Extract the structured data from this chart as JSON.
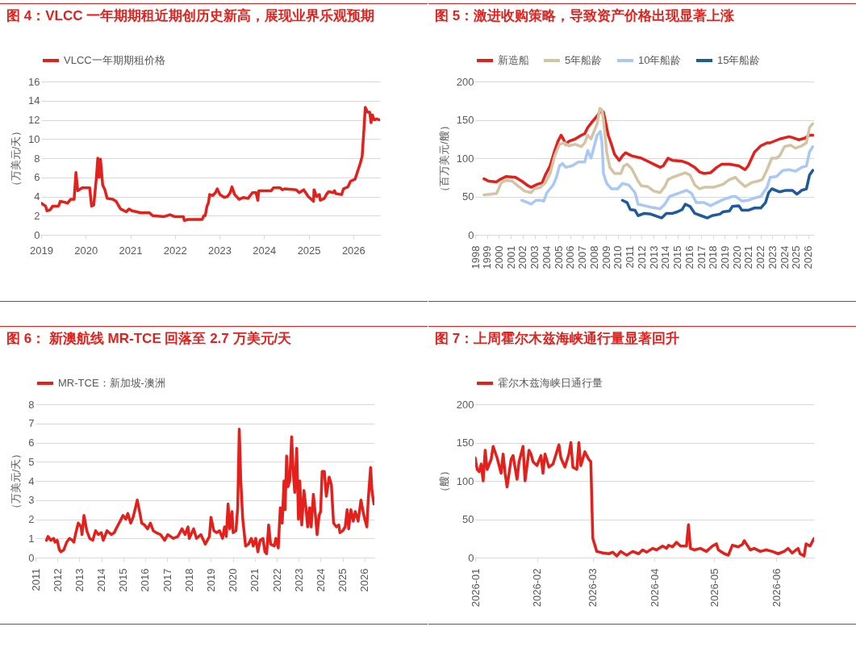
{
  "chart_data": [
    {
      "type": "line",
      "title": "图 4：VLCC 一年期期租近期创历史新高，展现业界乐观预期",
      "ylabel": "（万美元/天）",
      "legend": "top",
      "grid": "y",
      "marker": "none",
      "line_style": "solid",
      "xlim": [
        2019,
        2026.6
      ],
      "xticks": [
        2019,
        2020,
        2021,
        2022,
        2023,
        2024,
        2025,
        2026
      ],
      "ylim": [
        0,
        16
      ],
      "yticks": [
        0,
        2,
        4,
        6,
        8,
        10,
        12,
        14,
        16
      ],
      "x": [
        2019.0,
        2019.1,
        2019.13,
        2019.2,
        2019.26,
        2019.39,
        2019.43,
        2019.53,
        2019.59,
        2019.66,
        2019.74,
        2019.78,
        2019.82,
        2019.92,
        2020.09,
        2020.13,
        2020.18,
        2020.24,
        2020.27,
        2020.3,
        2020.33,
        2020.38,
        2020.43,
        2020.48,
        2020.61,
        2020.68,
        2020.78,
        2020.91,
        2020.97,
        2021.04,
        2021.24,
        2021.43,
        2021.5,
        2021.76,
        2021.89,
        2021.99,
        2022.19,
        2022.21,
        2022.29,
        2022.61,
        2022.65,
        2022.68,
        2022.72,
        2022.75,
        2022.78,
        2022.85,
        2022.91,
        2022.95,
        2023.01,
        2023.11,
        2023.18,
        2023.24,
        2023.28,
        2023.34,
        2023.44,
        2023.54,
        2023.64,
        2023.74,
        2023.82,
        2023.86,
        2023.88,
        2024.16,
        2024.21,
        2024.36,
        2024.41,
        2024.46,
        2024.72,
        2024.79,
        2024.89,
        2024.99,
        2025.11,
        2025.12,
        2025.18,
        2025.24,
        2025.26,
        2025.35,
        2025.41,
        2025.45,
        2025.55,
        2025.58,
        2025.61,
        2025.74,
        2025.78,
        2025.88,
        2025.94,
        2026.04,
        2026.09,
        2026.16,
        2026.2,
        2026.24,
        2026.27,
        2026.32,
        2026.37,
        2026.4,
        2026.43,
        2026.47,
        2026.53,
        2026.58
      ],
      "series": [
        {
          "name": "VLCC一年期期租价格",
          "color": "#e3201b",
          "values": [
            3.3,
            3.0,
            2.5,
            2.6,
            3.0,
            3.0,
            3.5,
            3.4,
            3.3,
            3.7,
            3.7,
            6.5,
            4.6,
            4.9,
            4.9,
            3.0,
            3.1,
            6.0,
            8.0,
            6.0,
            7.9,
            5.2,
            4.7,
            3.8,
            3.7,
            3.5,
            2.7,
            2.4,
            2.7,
            2.5,
            2.3,
            2.3,
            2.0,
            1.9,
            2.1,
            1.9,
            1.9,
            1.5,
            1.6,
            1.6,
            2.0,
            2.0,
            3.0,
            3.3,
            4.2,
            4.1,
            4.4,
            4.8,
            4.2,
            3.9,
            4.0,
            4.4,
            5.0,
            4.2,
            3.7,
            3.9,
            3.8,
            4.4,
            4.4,
            3.6,
            4.6,
            4.6,
            4.9,
            4.9,
            4.7,
            4.8,
            4.7,
            4.4,
            4.7,
            4.0,
            3.5,
            4.7,
            4.0,
            4.2,
            3.6,
            3.8,
            4.3,
            4.5,
            4.4,
            4.6,
            4.3,
            4.2,
            4.8,
            5.0,
            5.6,
            5.8,
            6.5,
            7.5,
            8.2,
            11.0,
            13.3,
            12.8,
            12.8,
            11.7,
            12.5,
            12.0,
            12.1,
            12.0
          ]
        }
      ]
    },
    {
      "type": "line",
      "title": "图 5：激进收购策略，导致资产价格出现显著上涨",
      "ylabel": "（百万美元/艘）",
      "legend": "top",
      "grid": "y",
      "marker": "none",
      "line_style": "solid",
      "xlim": [
        1998,
        2026.5
      ],
      "xticks": [
        1998,
        1999,
        2000,
        2001,
        2002,
        2003,
        2004,
        2005,
        2006,
        2007,
        2008,
        2009,
        2010,
        2011,
        2012,
        2013,
        2014,
        2015,
        2016,
        2017,
        2018,
        2019,
        2020,
        2021,
        2022,
        2023,
        2024,
        2025,
        2026
      ],
      "ylim": [
        0,
        200
      ],
      "yticks": [
        0,
        50,
        100,
        150,
        200
      ],
      "series": [
        {
          "name": "新造船",
          "color": "#e3201b",
          "x": [
            1998.74,
            1999.14,
            1999.8,
            2000.06,
            2000.59,
            2001.39,
            2001.92,
            2002.44,
            2002.71,
            2003.24,
            2003.63,
            2003.9,
            2004.3,
            2004.69,
            2004.96,
            2005.22,
            2005.41,
            2005.62,
            2005.88,
            2006.41,
            2006.94,
            2007.21,
            2007.47,
            2007.87,
            2008.26,
            2008.58,
            2008.79,
            2008.93,
            2009.19,
            2009.46,
            2009.72,
            2010.12,
            2010.38,
            2010.65,
            2011.17,
            2011.97,
            2012.5,
            2013.03,
            2013.56,
            2013.82,
            2014.22,
            2014.61,
            2015.41,
            2015.94,
            2016.47,
            2016.86,
            2017.26,
            2017.79,
            2018.32,
            2018.72,
            2019.38,
            2020.17,
            2020.7,
            2020.96,
            2021.49,
            2022.02,
            2022.55,
            2022.81,
            2023.61,
            2024.4,
            2024.67,
            2025.2,
            2025.72,
            2026.12,
            2026.39
          ],
          "values": [
            73,
            70,
            69,
            72,
            76,
            75,
            70,
            64,
            62,
            66,
            68,
            78,
            90,
            110,
            122,
            130,
            125,
            118,
            122,
            125,
            130,
            132,
            140,
            148,
            155,
            162,
            160,
            150,
            130,
            118,
            105,
            97,
            103,
            107,
            103,
            100,
            96,
            92,
            88,
            90,
            100,
            97,
            96,
            93,
            88,
            82,
            80,
            81,
            88,
            92,
            92,
            90,
            85,
            90,
            108,
            116,
            120,
            120,
            125,
            128,
            127,
            124,
            126,
            130,
            130
          ]
        },
        {
          "name": "5年船龄",
          "color": "#d3c4a4",
          "x": [
            1998.74,
            1999.27,
            1999.8,
            2000.2,
            2000.59,
            2001.12,
            2001.65,
            2002.18,
            2002.71,
            2002.97,
            2003.5,
            2003.9,
            2004.3,
            2004.69,
            2005.09,
            2005.49,
            2005.88,
            2006.41,
            2006.94,
            2007.21,
            2007.47,
            2007.74,
            2008.0,
            2008.26,
            2008.48,
            2008.66,
            2008.79,
            2009.06,
            2009.32,
            2009.72,
            2010.25,
            2010.51,
            2010.78,
            2011.17,
            2011.7,
            2011.97,
            2012.5,
            2013.03,
            2013.56,
            2013.95,
            2014.22,
            2014.61,
            2015.14,
            2015.67,
            2016.07,
            2016.47,
            2016.86,
            2017.26,
            2018.05,
            2018.85,
            2019.38,
            2019.9,
            2020.17,
            2020.7,
            2021.23,
            2021.76,
            2022.15,
            2022.55,
            2022.95,
            2023.34,
            2023.61,
            2024.01,
            2024.53,
            2024.93,
            2025.46,
            2025.86,
            2026.12,
            2026.39
          ],
          "values": [
            52,
            53,
            54,
            68,
            71,
            70,
            63,
            57,
            55,
            60,
            62,
            68,
            80,
            103,
            118,
            120,
            116,
            118,
            115,
            120,
            130,
            125,
            135,
            145,
            165,
            163,
            150,
            108,
            88,
            80,
            80,
            90,
            92,
            86,
            70,
            64,
            63,
            57,
            55,
            63,
            72,
            75,
            78,
            81,
            78,
            65,
            60,
            62,
            62,
            66,
            72,
            75,
            70,
            63,
            68,
            70,
            72,
            85,
            100,
            100,
            103,
            115,
            117,
            113,
            116,
            120,
            140,
            145
          ]
        },
        {
          "name": "10年船龄",
          "color": "#a9c8f5",
          "x": [
            2001.92,
            2002.44,
            2002.71,
            2003.11,
            2003.5,
            2003.77,
            2004.03,
            2004.56,
            2004.83,
            2005.09,
            2005.35,
            2005.62,
            2006.15,
            2006.68,
            2007.21,
            2007.47,
            2007.74,
            2008.0,
            2008.26,
            2008.53,
            2008.66,
            2008.79,
            2009.06,
            2009.46,
            2009.98,
            2010.38,
            2010.91,
            2011.44,
            2011.7,
            2012.23,
            2012.76,
            2013.56,
            2013.95,
            2014.35,
            2014.88,
            2015.41,
            2015.8,
            2016.2,
            2016.6,
            2017.26,
            2017.79,
            2018.32,
            2018.85,
            2019.64,
            2019.9,
            2020.43,
            2020.96,
            2021.49,
            2022.02,
            2022.55,
            2022.81,
            2023.34,
            2023.87,
            2024.4,
            2024.93,
            2025.46,
            2025.86,
            2026.12,
            2026.39
          ],
          "values": [
            45,
            42,
            40,
            45,
            45,
            44,
            55,
            65,
            75,
            90,
            93,
            88,
            90,
            95,
            95,
            110,
            100,
            115,
            130,
            135,
            120,
            80,
            67,
            60,
            60,
            67,
            65,
            55,
            40,
            38,
            36,
            34,
            40,
            50,
            53,
            56,
            58,
            54,
            42,
            42,
            38,
            42,
            46,
            50,
            50,
            44,
            45,
            48,
            50,
            62,
            75,
            76,
            84,
            85,
            83,
            88,
            90,
            108,
            115
          ]
        },
        {
          "name": "15年船龄",
          "color": "#1f5b9b",
          "x": [
            2010.38,
            2010.78,
            2011.04,
            2011.44,
            2011.7,
            2012.23,
            2012.76,
            2013.29,
            2013.69,
            2014.08,
            2014.61,
            2015.01,
            2015.41,
            2015.67,
            2016.07,
            2016.47,
            2016.99,
            2017.52,
            2017.92,
            2018.58,
            2018.85,
            2019.38,
            2019.64,
            2020.17,
            2020.43,
            2020.96,
            2021.49,
            2022.02,
            2022.42,
            2022.68,
            2022.95,
            2023.61,
            2024.14,
            2024.67,
            2025.06,
            2025.46,
            2025.86,
            2026.12,
            2026.39
          ],
          "values": [
            45,
            42,
            33,
            32,
            25,
            28,
            27,
            24,
            22,
            28,
            28,
            30,
            33,
            40,
            37,
            28,
            25,
            22,
            25,
            27,
            30,
            31,
            37,
            38,
            32,
            32,
            35,
            35,
            42,
            55,
            60,
            56,
            58,
            58,
            53,
            58,
            60,
            78,
            84
          ]
        }
      ]
    },
    {
      "type": "line",
      "title": "图 6： 新澳航线 MR-TCE 回落至 2.7 万美元/天",
      "ylabel": "（万美元/天）",
      "legend": "top",
      "grid": "y",
      "marker": "none",
      "line_style": "solid",
      "xlim": [
        2011,
        2026.45
      ],
      "xticks": [
        2011,
        2012,
        2013,
        2014,
        2015,
        2016,
        2017,
        2018,
        2019,
        2020,
        2021,
        2022,
        2023,
        2024,
        2025,
        2026
      ],
      "ylim": [
        0,
        8
      ],
      "yticks": [
        0,
        1,
        2,
        3,
        4,
        5,
        6,
        7,
        8
      ],
      "x": [
        2011.5,
        2011.57,
        2011.7,
        2011.83,
        2011.89,
        2011.99,
        2012.09,
        2012.16,
        2012.29,
        2012.42,
        2012.55,
        2012.68,
        2012.75,
        2012.82,
        2012.95,
        2013.08,
        2013.12,
        2013.21,
        2013.34,
        2013.47,
        2013.61,
        2013.74,
        2013.87,
        2014.0,
        2014.09,
        2014.26,
        2014.46,
        2014.59,
        2014.72,
        2014.86,
        2014.99,
        2015.12,
        2015.21,
        2015.34,
        2015.45,
        2015.58,
        2015.64,
        2015.78,
        2015.84,
        2015.97,
        2016.11,
        2016.24,
        2016.37,
        2016.5,
        2016.7,
        2016.89,
        2017.03,
        2017.16,
        2017.29,
        2017.49,
        2017.68,
        2017.82,
        2017.95,
        2018.01,
        2018.21,
        2018.34,
        2018.54,
        2018.74,
        2018.93,
        2019.0,
        2019.13,
        2019.26,
        2019.39,
        2019.53,
        2019.62,
        2019.7,
        2019.78,
        2019.86,
        2019.96,
        2020.01,
        2020.14,
        2020.22,
        2020.29,
        2020.36,
        2020.45,
        2020.58,
        2020.71,
        2020.84,
        2020.93,
        2021.04,
        2021.14,
        2021.24,
        2021.37,
        2021.46,
        2021.54,
        2021.63,
        2021.72,
        2021.89,
        2021.96,
        2022.07,
        2022.16,
        2022.25,
        2022.33,
        2022.38,
        2022.45,
        2022.51,
        2022.59,
        2022.68,
        2022.75,
        2022.82,
        2022.91,
        2022.99,
        2023.05,
        2023.14,
        2023.24,
        2023.34,
        2023.41,
        2023.5,
        2023.57,
        2023.67,
        2023.78,
        2023.84,
        2023.93,
        2024.0,
        2024.07,
        2024.17,
        2024.26,
        2024.39,
        2024.49,
        2024.59,
        2024.72,
        2024.83,
        2024.88,
        2025.01,
        2025.12,
        2025.21,
        2025.28,
        2025.38,
        2025.49,
        2025.58,
        2025.71,
        2025.84,
        2025.97,
        2026.11,
        2026.17,
        2026.28,
        2026.34,
        2026.43
      ],
      "series": [
        {
          "name": "MR-TCE：新加坡-澳洲",
          "color": "#e3201b",
          "values": [
            0.9,
            1.1,
            0.9,
            1.0,
            0.8,
            0.9,
            0.4,
            0.3,
            0.4,
            0.8,
            1.0,
            0.9,
            0.8,
            1.2,
            1.8,
            1.6,
            1.2,
            2.2,
            1.4,
            1.0,
            0.9,
            1.4,
            1.2,
            1.3,
            0.9,
            1.4,
            1.2,
            1.3,
            1.6,
            1.9,
            2.2,
            2.0,
            2.3,
            1.8,
            2.1,
            2.7,
            3.0,
            2.2,
            1.8,
            1.7,
            1.5,
            1.8,
            1.4,
            1.3,
            1.2,
            0.9,
            1.2,
            1.1,
            1.0,
            1.1,
            1.5,
            1.2,
            1.6,
            1.0,
            1.5,
            1.0,
            1.2,
            0.7,
            1.1,
            2.1,
            1.4,
            1.3,
            1.4,
            1.0,
            1.6,
            1.1,
            2.8,
            1.5,
            2.4,
            1.3,
            1.4,
            2.6,
            6.7,
            4.0,
            2.0,
            0.6,
            0.7,
            1.0,
            0.6,
            1.0,
            0.3,
            0.9,
            1.0,
            0.3,
            0.2,
            1.7,
            0.7,
            0.6,
            1.0,
            0.5,
            2.6,
            1.8,
            4.0,
            2.5,
            5.3,
            3.7,
            4.0,
            6.3,
            4.5,
            3.4,
            5.7,
            2.0,
            4.0,
            1.7,
            3.5,
            2.5,
            1.6,
            2.6,
            1.6,
            3.3,
            2.0,
            1.2,
            2.2,
            2.4,
            4.5,
            4.5,
            3.2,
            4.2,
            3.8,
            1.8,
            1.6,
            1.7,
            1.3,
            1.4,
            1.6,
            2.5,
            1.5,
            2.5,
            1.9,
            2.4,
            1.9,
            3.0,
            2.2,
            1.6,
            3.0,
            4.7,
            3.5,
            2.8
          ]
        }
      ]
    },
    {
      "type": "line",
      "title": "图 7：上周霍尔木兹海峡通行量显著回升",
      "ylabel": "（艘）",
      "legend": "top",
      "grid": "y",
      "marker": "none",
      "line_style": "solid",
      "xlim": [
        "2026-01-01",
        "2026-06-20"
      ],
      "xticks": [
        {
          "value": "2026-01",
          "label": "2026-01"
        },
        {
          "value": "2026-02",
          "label": "2026-02"
        },
        {
          "value": "2026-03",
          "label": "2026-03"
        },
        {
          "value": "2026-04",
          "label": "2026-04"
        },
        {
          "value": "2026-05",
          "label": "2026-05"
        },
        {
          "value": "2026-06",
          "label": "2026-06"
        }
      ],
      "ylim": [
        0,
        200
      ],
      "yticks": [
        0,
        50,
        100,
        150,
        200
      ],
      "x": [
        "2026-01-01",
        "2026-01-02",
        "2026-01-03",
        "2026-01-04",
        "2026-01-05",
        "2026-01-06",
        "2026-01-07",
        "2026-01-09",
        "2026-01-10",
        "2026-01-12",
        "2026-01-14",
        "2026-01-15",
        "2026-01-16",
        "2026-01-17",
        "2026-01-19",
        "2026-01-20",
        "2026-01-22",
        "2026-01-23",
        "2026-01-25",
        "2026-01-26",
        "2026-01-28",
        "2026-01-29",
        "2026-01-30",
        "2026-02-01",
        "2026-02-03",
        "2026-02-04",
        "2026-02-05",
        "2026-02-07",
        "2026-02-09",
        "2026-02-10",
        "2026-02-12",
        "2026-02-13",
        "2026-02-15",
        "2026-02-17",
        "2026-02-18",
        "2026-02-19",
        "2026-02-21",
        "2026-02-22",
        "2026-02-23",
        "2026-02-25",
        "2026-02-27",
        "2026-02-28",
        "2026-03-01",
        "2026-03-03",
        "2026-03-06",
        "2026-03-09",
        "2026-03-11",
        "2026-03-13",
        "2026-03-15",
        "2026-03-18",
        "2026-03-21",
        "2026-03-24",
        "2026-03-26",
        "2026-03-28",
        "2026-03-31",
        "2026-04-02",
        "2026-04-05",
        "2026-04-07",
        "2026-04-08",
        "2026-04-10",
        "2026-04-12",
        "2026-04-14",
        "2026-04-17",
        "2026-04-18",
        "2026-04-19",
        "2026-04-21",
        "2026-04-24",
        "2026-04-27",
        "2026-04-30",
        "2026-05-02",
        "2026-05-03",
        "2026-05-06",
        "2026-05-08",
        "2026-05-10",
        "2026-05-13",
        "2026-05-15",
        "2026-05-16",
        "2026-05-19",
        "2026-05-21",
        "2026-05-24",
        "2026-05-27",
        "2026-05-30",
        "2026-06-02",
        "2026-06-05",
        "2026-06-07",
        "2026-06-09",
        "2026-06-12",
        "2026-06-13",
        "2026-06-15",
        "2026-06-16",
        "2026-06-18",
        "2026-06-20"
      ],
      "series": [
        {
          "name": "霍尔木兹海峡日通行量",
          "color": "#e3201b",
          "values": [
            130,
            115,
            112,
            122,
            100,
            140,
            115,
            128,
            145,
            130,
            110,
            135,
            110,
            92,
            128,
            133,
            102,
            125,
            145,
            100,
            140,
            135,
            125,
            120,
            133,
            110,
            135,
            118,
            122,
            130,
            147,
            130,
            118,
            135,
            150,
            118,
            115,
            150,
            120,
            138,
            128,
            125,
            25,
            8,
            6,
            5,
            7,
            2,
            8,
            3,
            8,
            5,
            10,
            7,
            12,
            10,
            15,
            12,
            16,
            14,
            20,
            15,
            15,
            43,
            12,
            10,
            12,
            8,
            15,
            18,
            10,
            5,
            3,
            16,
            14,
            17,
            22,
            10,
            12,
            8,
            10,
            8,
            5,
            8,
            12,
            6,
            12,
            5,
            2,
            18,
            15,
            25
          ]
        }
      ]
    }
  ]
}
